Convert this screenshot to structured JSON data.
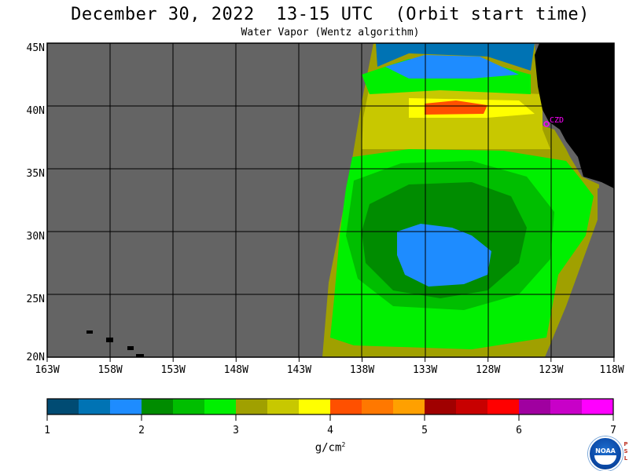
{
  "title": "December 30, 2022  13-15 UTC  (Orbit start time)",
  "subtitle": "Water Vapor (Wentz algorithm)",
  "map": {
    "lat_labels": [
      "45N",
      "40N",
      "35N",
      "30N",
      "25N",
      "20N"
    ],
    "lon_labels": [
      "163W",
      "158W",
      "153W",
      "148W",
      "143W",
      "138W",
      "133W",
      "128W",
      "123W",
      "118W"
    ],
    "station_label": "CZD",
    "colors": {
      "no_data": "#646464",
      "land": "#000000",
      "grid": "#000000",
      "station": "#ff00ff"
    }
  },
  "colorbar": {
    "colors": [
      "#004b73",
      "#0073b4",
      "#1e8cff",
      "#008c00",
      "#00be00",
      "#00f000",
      "#a0a000",
      "#c8c800",
      "#ffff00",
      "#ff5000",
      "#ff7800",
      "#ffa000",
      "#a00000",
      "#c80000",
      "#ff0000",
      "#a000a0",
      "#c800c8",
      "#ff00ff"
    ],
    "ticks": [
      "1",
      "2",
      "3",
      "4",
      "5",
      "6",
      "7"
    ],
    "unit": "g/cm",
    "unit_exp": "2"
  },
  "logos": {
    "noaa": "NOAA",
    "psl_letters": [
      "P",
      "S",
      "L"
    ]
  }
}
